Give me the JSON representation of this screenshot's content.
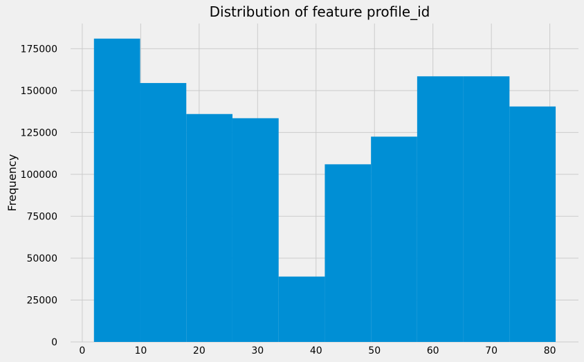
{
  "chart_data": {
    "type": "bar",
    "subtype": "histogram",
    "title": "Distribution of feature profile_id",
    "xlabel": "",
    "ylabel": "Frequency",
    "xlim": [
      -2.0,
      84.9
    ],
    "ylim": [
      0,
      190000
    ],
    "xticks": [
      0,
      10,
      20,
      30,
      40,
      50,
      60,
      70,
      80
    ],
    "yticks": [
      0,
      25000,
      50000,
      75000,
      100000,
      125000,
      150000,
      175000
    ],
    "grid": true,
    "legend": "none",
    "colors": {
      "bar": "#008fd5",
      "background": "#f0f0f0",
      "grid": "#cbcbcb",
      "text": "#000000"
    },
    "bins": [
      {
        "x0": 2.0,
        "x1": 9.9,
        "value": 181000
      },
      {
        "x0": 9.9,
        "x1": 17.8,
        "value": 154500
      },
      {
        "x0": 17.8,
        "x1": 25.7,
        "value": 136000
      },
      {
        "x0": 25.7,
        "x1": 33.6,
        "value": 133500
      },
      {
        "x0": 33.6,
        "x1": 41.5,
        "value": 39000
      },
      {
        "x0": 41.5,
        "x1": 49.4,
        "value": 106000
      },
      {
        "x0": 49.4,
        "x1": 57.3,
        "value": 122500
      },
      {
        "x0": 57.3,
        "x1": 65.2,
        "value": 158500
      },
      {
        "x0": 65.2,
        "x1": 73.1,
        "value": 158500
      },
      {
        "x0": 73.1,
        "x1": 81.0,
        "value": 140500
      }
    ]
  }
}
